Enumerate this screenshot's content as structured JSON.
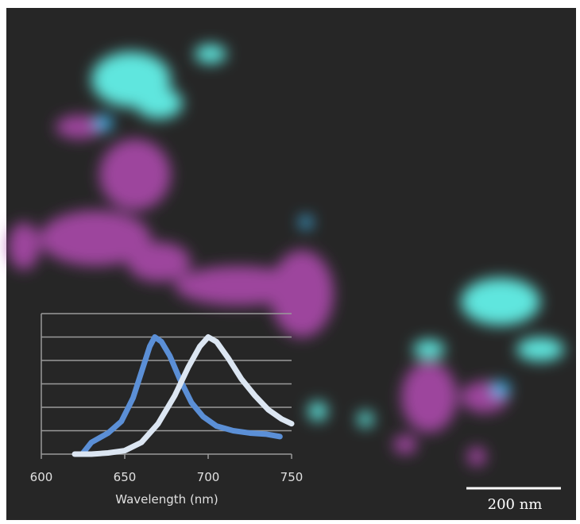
{
  "chart_data": {
    "type": "line",
    "xlabel": "Wavelength (nm)",
    "xlim": [
      600,
      750
    ],
    "xticks": [
      600,
      650,
      700,
      750
    ],
    "ylim": [
      0,
      6
    ],
    "yticks": [
      0,
      1,
      2,
      3,
      4,
      5,
      6
    ],
    "ytick_labels": false,
    "grid": true,
    "series": [
      {
        "color": "#5b8fd6",
        "x": [
          625,
          630,
          640,
          648,
          655,
          660,
          665,
          668,
          672,
          677,
          683,
          690,
          697,
          705,
          715,
          725,
          735,
          743
        ],
        "values": [
          0.05,
          0.5,
          0.9,
          1.4,
          2.4,
          3.5,
          4.6,
          5.0,
          4.8,
          4.2,
          3.2,
          2.2,
          1.6,
          1.2,
          1.0,
          0.9,
          0.85,
          0.75
        ]
      },
      {
        "color": "#dce6f2",
        "x": [
          620,
          630,
          640,
          650,
          660,
          670,
          680,
          688,
          695,
          700,
          705,
          712,
          720,
          728,
          736,
          744,
          750
        ],
        "values": [
          0.0,
          0.0,
          0.05,
          0.15,
          0.5,
          1.3,
          2.5,
          3.7,
          4.6,
          5.0,
          4.8,
          4.1,
          3.2,
          2.5,
          1.9,
          1.5,
          1.3
        ]
      }
    ]
  },
  "scale_bar": "200 nm"
}
